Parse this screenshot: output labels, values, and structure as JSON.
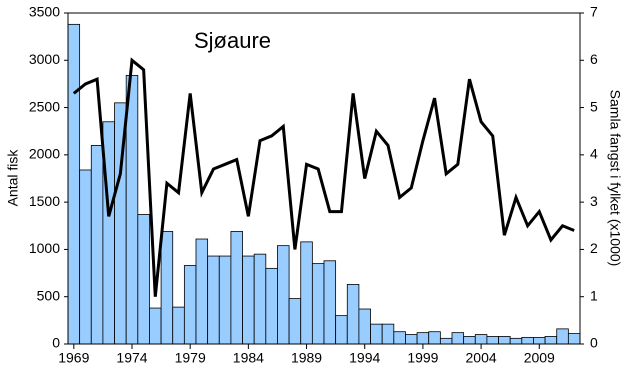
{
  "chart_data": {
    "type": "combo",
    "title": "Sjøaure",
    "y_label": "Antal fisk",
    "y2_label": "Samla fangst i fylket (x1000)",
    "categories": [
      "1969",
      null,
      null,
      null,
      null,
      "1974",
      null,
      null,
      null,
      null,
      "1979",
      null,
      null,
      null,
      null,
      "1984",
      null,
      null,
      null,
      null,
      "1989",
      null,
      null,
      null,
      null,
      "1994",
      null,
      null,
      null,
      null,
      "1999",
      null,
      null,
      null,
      null,
      "2004",
      null,
      null,
      null,
      null,
      "2009",
      null,
      null,
      null
    ],
    "series": [
      {
        "type": "bar",
        "color": "#99ccff",
        "values": [
          3380,
          1840,
          2100,
          2350,
          2550,
          2840,
          1370,
          380,
          1190,
          390,
          830,
          1110,
          930,
          930,
          1190,
          930,
          950,
          800,
          1040,
          480,
          1080,
          850,
          880,
          300,
          630,
          370,
          210,
          210,
          130,
          100,
          120,
          130,
          60,
          120,
          80,
          100,
          80,
          80,
          60,
          70,
          70,
          80,
          160,
          110
        ]
      },
      {
        "type": "line",
        "axis": "y2",
        "color": "#000000",
        "values": [
          5.3,
          5.5,
          5.6,
          2.7,
          3.6,
          6.0,
          5.8,
          1.0,
          3.4,
          3.2,
          5.3,
          3.2,
          3.7,
          3.8,
          3.9,
          2.7,
          4.3,
          4.4,
          4.6,
          2.0,
          3.8,
          3.7,
          2.8,
          2.8,
          5.3,
          3.5,
          4.5,
          4.2,
          3.1,
          3.3,
          4.3,
          5.2,
          3.6,
          3.8,
          5.6,
          4.7,
          4.4,
          2.3,
          3.1,
          2.5,
          2.8,
          2.2,
          2.5,
          2.4
        ]
      }
    ],
    "ylim": [
      0,
      3500
    ],
    "yticks": [
      0,
      500,
      1000,
      1500,
      2000,
      2500,
      3000,
      3500
    ],
    "y2lim": [
      0,
      7
    ],
    "y2ticks": [
      0,
      1,
      2,
      3,
      4,
      5,
      6,
      7
    ]
  }
}
